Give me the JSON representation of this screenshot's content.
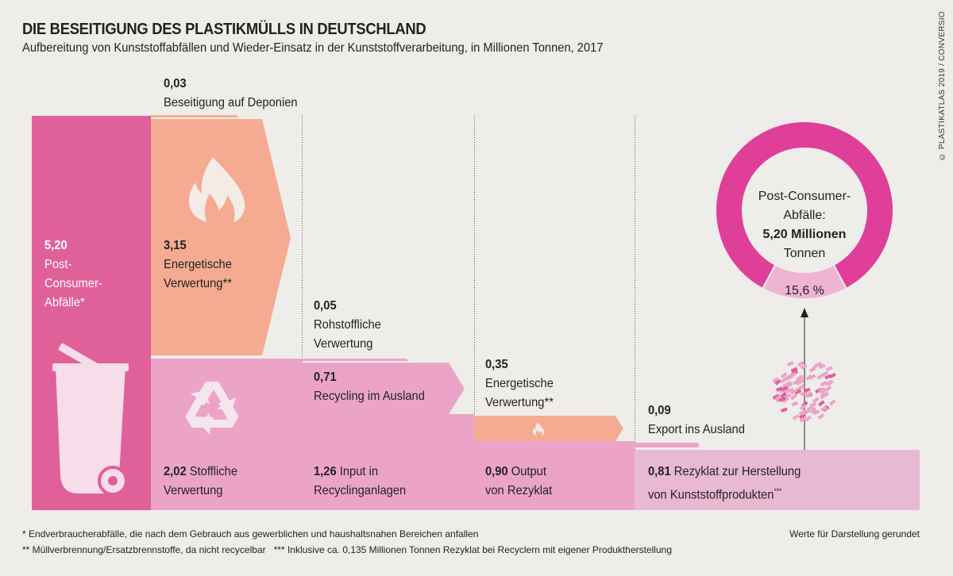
{
  "header": {
    "title": "DIE BESEITIGUNG DES PLASTIKMÜLLS IN DEUTSCHLAND",
    "subtitle": "Aufbereitung von Kunststoffabfällen und Wieder-Einsatz in der Kunststoffverarbeitung, in Millionen Tonnen, 2017"
  },
  "credit": "© PLASTIKATLAS 2019 / CONVERSIO",
  "flows": {
    "post_consumer": {
      "value": "5,20",
      "label_1": "Post-",
      "label_2": "Consumer-",
      "label_3": "Abfälle*"
    },
    "deponien": {
      "value": "0,03",
      "label": "Beseitigung auf Deponien"
    },
    "energetisch_1": {
      "value": "3,15",
      "label_1": "Energetische",
      "label_2": "Verwertung**"
    },
    "stofflich": {
      "value": "2,02",
      "label_1": "Stoffliche",
      "label_2": "Verwertung"
    },
    "rohstofflich": {
      "value": "0,05",
      "label_1": "Rohstoffliche",
      "label_2": "Verwertung"
    },
    "ausland": {
      "value": "0,71",
      "label": "Recycling im Ausland"
    },
    "input": {
      "value": "1,26",
      "label_1": "Input in",
      "label_2": "Recyclinganlagen"
    },
    "energetisch_2": {
      "value": "0,35",
      "label_1": "Energetische",
      "label_2": "Verwertung**"
    },
    "output": {
      "value": "0,90",
      "label_1": "Output",
      "label_2": "von Rezyklat"
    },
    "export": {
      "value": "0,09",
      "label": "Export ins Ausland"
    },
    "rezyklat": {
      "value": "0,81",
      "label_1": "Rezyklat zur Herstellung",
      "label_2": "von Kunststoffprodukten",
      "sup": "***"
    }
  },
  "donut": {
    "label_1": "Post-Consumer-",
    "label_2": "Abfälle:",
    "label_3": "5,20 Millionen",
    "label_4": "Tonnen",
    "share_label": "15,6 %",
    "share_percent": 15.6
  },
  "footnotes": {
    "note_1": "* Endverbraucherabfälle, die nach dem Gebrauch aus gewerblichen und haushaltsnahen Bereichen anfallen",
    "note_2": "** Müllverbrennung/Ersatzbrennstoffe, da nicht recycelbar   *** Inklusive ca. 0,135 Millionen Tonnen Rezyklat bei Recyclern mit eigener Produktherstellung",
    "rounding": "Werte für Darstellung gerundet"
  },
  "colors": {
    "background": "#efedea",
    "post_consumer": "#e0609a",
    "energetic": "#f4ab91",
    "material": "#eba4c8",
    "rezyklat": "#e9b8d3",
    "donut": "#df3f98",
    "donut_share": "#efb3d3"
  }
}
